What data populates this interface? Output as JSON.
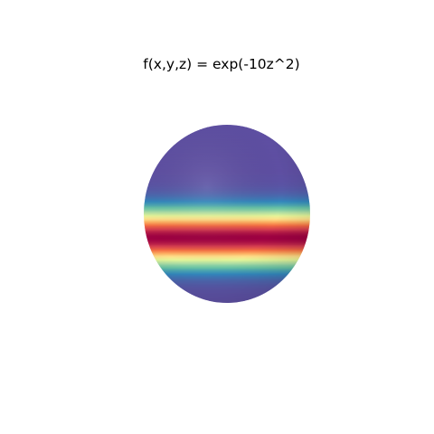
{
  "title": "f(x,y,z) = exp(-10z^2)",
  "colormap": "Spectral_r",
  "colorscale": [
    "#5e4fa2",
    "#3288bd",
    "#66c2a5",
    "#abdda4",
    "#e6f598",
    "#fee08b",
    "#fdae61",
    "#f46d43",
    "#d53e4f",
    "#9e0142"
  ],
  "chart_data": {
    "type": "surface",
    "function": "exp(-10z^2)",
    "surface": "unit-sphere",
    "zlim": [
      -1,
      1
    ],
    "value_range": [
      0,
      1
    ]
  }
}
